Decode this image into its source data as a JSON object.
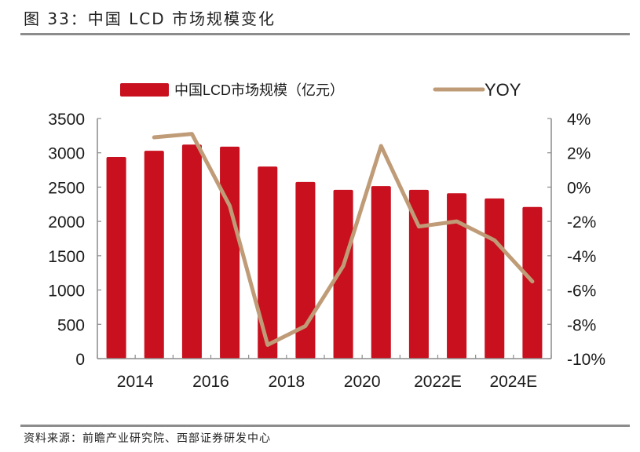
{
  "header": {
    "figure_title": "图 33：中国 LCD 市场规模变化"
  },
  "footer": {
    "source": "资料来源：前瞻产业研究院、西部证券研发中心"
  },
  "colors": {
    "bar": "#c8101e",
    "line": "#bf9c77",
    "axis": "#8c8c8c",
    "rule": "#8c8c8c"
  },
  "chart_data": {
    "type": "bar",
    "title": "中国LCD市场规模变化",
    "categories": [
      "2014",
      "2015",
      "2016",
      "2017",
      "2018",
      "2019",
      "2020",
      "2021",
      "2022E",
      "2023E",
      "2024E",
      "2025E"
    ],
    "x_tick_labels": [
      "2014",
      "2016",
      "2018",
      "2020",
      "2022E",
      "2024E"
    ],
    "series": [
      {
        "name": "中国LCD市场规模（亿元）",
        "type": "bar",
        "axis": "left",
        "values": [
          2940,
          3030,
          3120,
          3090,
          2800,
          2575,
          2460,
          2515,
          2460,
          2410,
          2335,
          2210
        ]
      },
      {
        "name": "YOY",
        "type": "line",
        "axis": "right",
        "unit": "%",
        "values": [
          null,
          2.9,
          3.1,
          -1.1,
          -9.2,
          -8.1,
          -4.6,
          2.4,
          -2.3,
          -2.0,
          -3.1,
          -5.5
        ]
      }
    ],
    "left_axis": {
      "ylim": [
        0,
        3500
      ],
      "ticks": [
        0,
        500,
        1000,
        1500,
        2000,
        2500,
        3000,
        3500
      ],
      "tick_labels": [
        "0",
        "500",
        "1000",
        "1500",
        "2000",
        "2500",
        "3000",
        "3500"
      ]
    },
    "right_axis": {
      "ylim": [
        -10,
        4
      ],
      "ticks": [
        -10,
        -8,
        -6,
        -4,
        -2,
        0,
        2,
        4
      ],
      "tick_labels": [
        "-10%",
        "-8%",
        "-6%",
        "-4%",
        "-2%",
        "0%",
        "2%",
        "4%"
      ]
    },
    "legend": {
      "placement": "top-center",
      "items": [
        "中国LCD市场规模（亿元）",
        "YOY"
      ]
    },
    "grid": false,
    "xlabel": "",
    "ylabel": ""
  }
}
